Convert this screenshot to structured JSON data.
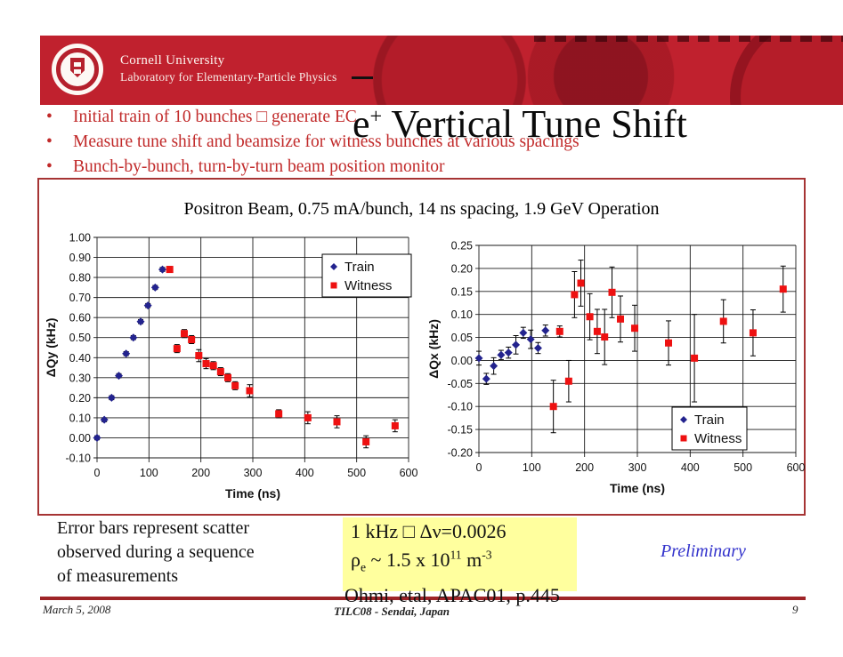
{
  "slide": {
    "header": {
      "institution": "Cornell University",
      "department": "Laboratory for Elementary-Particle Physics"
    },
    "title": {
      "base": "e",
      "sup": "+",
      "rest": " Vertical Tune Shift"
    },
    "bullets": [
      "Initial train of 10 bunches □  generate EC",
      "Measure tune shift and beamsize for witness bunches at various spacings",
      "Bunch-by-bunch, turn-by-turn beam position monitor"
    ],
    "bullet_glyph": "•",
    "chart_panel_title": "Positron Beam, 0.75 mA/bunch, 14 ns spacing, 1.9 GeV Operation",
    "note_left": [
      "Error bars represent scatter",
      "observed during a sequence",
      "of measurements"
    ],
    "highlight": {
      "line1": "1 kHz □  Δν=0.0026",
      "line2": {
        "rho": "ρ",
        "sub": "e",
        "mid": " ~ 1.5 x 10",
        "exp1": "11",
        "unit": " m",
        "exp2": "-3"
      }
    },
    "citation": "Ohmi, etal, APAC01, p.445",
    "preliminary": "Preliminary",
    "footer": {
      "date": "March 5, 2008",
      "venue": "TILC08 - Sendai, Japan",
      "page": "9"
    }
  },
  "colors": {
    "banner_red": "#c0212e",
    "bullet_red": "#c12a2a",
    "panel_border": "#a63434",
    "train_blue": "#23238e",
    "witness_red": "#ee1111",
    "highlight_yellow": "#ffff9e",
    "preliminary_blue": "#3333cc",
    "footer_line_red": "#9e2428"
  },
  "chart_data": [
    {
      "type": "scatter",
      "xlabel": "Time (ns)",
      "ylabel": "ΔQy (kHz)",
      "xlim": [
        0,
        600
      ],
      "xstep": 100,
      "ylim": [
        -0.1,
        1.0
      ],
      "ystep": 0.1,
      "grid": true,
      "legend_position": "top-right",
      "series": [
        {
          "name": "Train",
          "marker": "diamond",
          "color": "#23238e",
          "points": [
            [
              0,
              0.0,
              0.01
            ],
            [
              14,
              0.09,
              0.01
            ],
            [
              28,
              0.2,
              0.01
            ],
            [
              42,
              0.31,
              0.01
            ],
            [
              56,
              0.42,
              0.01
            ],
            [
              70,
              0.5,
              0.01
            ],
            [
              84,
              0.58,
              0.01
            ],
            [
              98,
              0.66,
              0.01
            ],
            [
              112,
              0.75,
              0.01
            ],
            [
              126,
              0.84,
              0.01
            ]
          ]
        },
        {
          "name": "Witness",
          "marker": "square",
          "color": "#ee1111",
          "points": [
            [
              140,
              0.84,
              0.015
            ],
            [
              154,
              0.445,
              0.02
            ],
            [
              168,
              0.52,
              0.02
            ],
            [
              182,
              0.49,
              0.02
            ],
            [
              196,
              0.41,
              0.03
            ],
            [
              210,
              0.37,
              0.025
            ],
            [
              224,
              0.36,
              0.02
            ],
            [
              238,
              0.33,
              0.02
            ],
            [
              252,
              0.3,
              0.02
            ],
            [
              266,
              0.26,
              0.02
            ],
            [
              294,
              0.235,
              0.03
            ],
            [
              350,
              0.12,
              0.02
            ],
            [
              406,
              0.1,
              0.03
            ],
            [
              462,
              0.08,
              0.03
            ],
            [
              518,
              -0.02,
              0.03
            ],
            [
              574,
              0.06,
              0.03
            ]
          ]
        }
      ]
    },
    {
      "type": "scatter",
      "xlabel": "Time (ns)",
      "ylabel": "ΔQx (kHz)",
      "xlim": [
        0,
        600
      ],
      "xstep": 100,
      "ylim": [
        -0.2,
        0.25
      ],
      "ystep": 0.05,
      "grid": true,
      "legend_position": "bottom-right",
      "series": [
        {
          "name": "Train",
          "marker": "diamond",
          "color": "#23238e",
          "points": [
            [
              0,
              0.005,
              0.015
            ],
            [
              14,
              -0.04,
              0.012
            ],
            [
              28,
              -0.012,
              0.018
            ],
            [
              42,
              0.012,
              0.01
            ],
            [
              56,
              0.017,
              0.012
            ],
            [
              70,
              0.034,
              0.02
            ],
            [
              84,
              0.06,
              0.012
            ],
            [
              98,
              0.046,
              0.02
            ],
            [
              112,
              0.027,
              0.012
            ],
            [
              126,
              0.065,
              0.012
            ]
          ]
        },
        {
          "name": "Witness",
          "marker": "square",
          "color": "#ee1111",
          "points": [
            [
              141,
              -0.1,
              0.057
            ],
            [
              153,
              0.063,
              0.012
            ],
            [
              170,
              -0.045,
              0.045
            ],
            [
              181,
              0.143,
              0.05
            ],
            [
              193,
              0.168,
              0.05
            ],
            [
              210,
              0.095,
              0.05
            ],
            [
              224,
              0.063,
              0.048
            ],
            [
              238,
              0.051,
              0.06
            ],
            [
              252,
              0.148,
              0.055
            ],
            [
              268,
              0.09,
              0.05
            ],
            [
              295,
              0.07,
              0.05
            ],
            [
              359,
              0.038,
              0.048
            ],
            [
              408,
              0.005,
              0.095
            ],
            [
              463,
              0.085,
              0.047
            ],
            [
              519,
              0.06,
              0.05
            ],
            [
              576,
              0.155,
              0.05
            ]
          ]
        }
      ]
    }
  ]
}
